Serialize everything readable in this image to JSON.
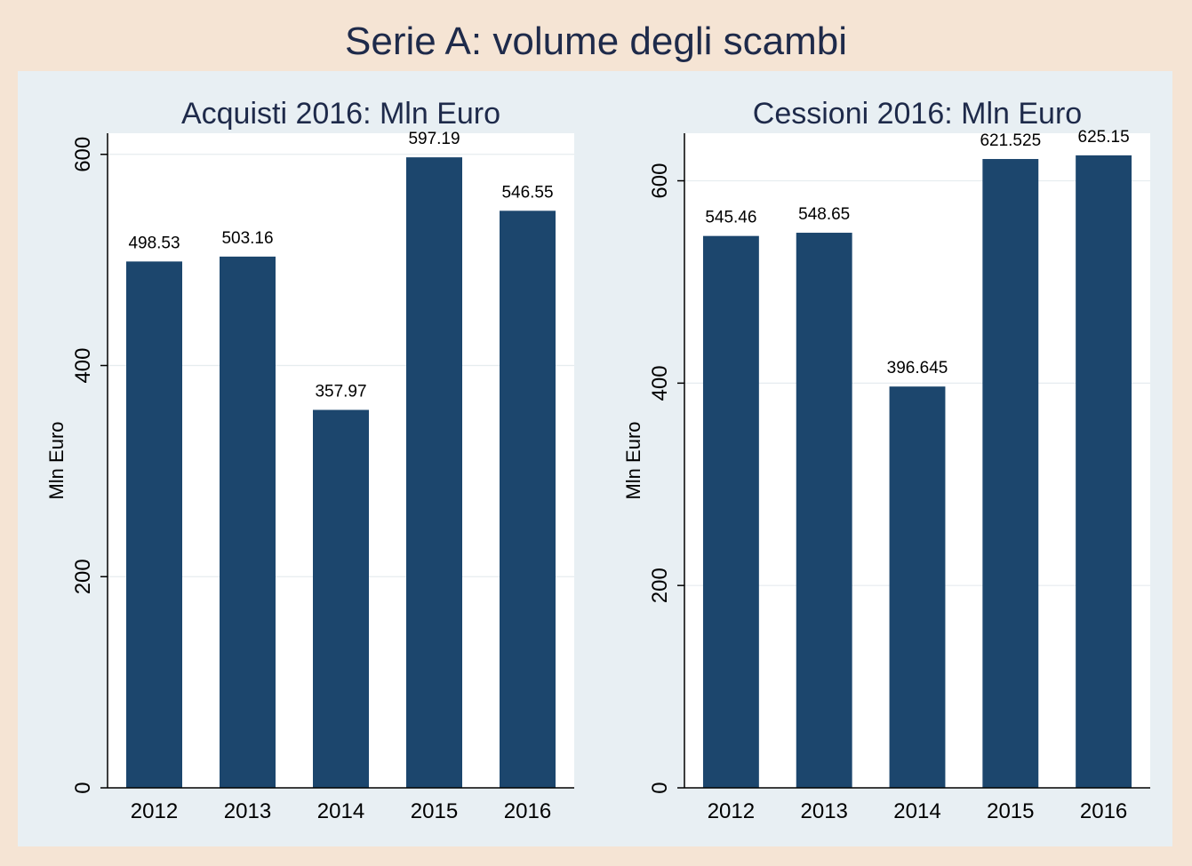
{
  "title": "Serie A: volume degli scambi",
  "colors": {
    "page_background": "#f5e4d4",
    "plot_region_background": "#e8eff3",
    "plot_area_background": "#ffffff",
    "bar": "#1c466d",
    "title": "#1e2a4a"
  },
  "chart_data": [
    {
      "type": "bar",
      "title": "Acquisti 2016: Mln Euro",
      "xlabel": "",
      "ylabel": "Mln Euro",
      "categories": [
        "2012",
        "2013",
        "2014",
        "2015",
        "2016"
      ],
      "values": [
        498.53,
        503.16,
        357.97,
        597.19,
        546.55
      ],
      "value_labels": [
        "498.53",
        "503.16",
        "357.97",
        "597.19",
        "546.55"
      ],
      "yticks": [
        0,
        200,
        400,
        600
      ],
      "ylim": [
        0,
        620
      ],
      "grid": true
    },
    {
      "type": "bar",
      "title": "Cessioni 2016: Mln Euro",
      "xlabel": "",
      "ylabel": "Mln Euro",
      "categories": [
        "2012",
        "2013",
        "2014",
        "2015",
        "2016"
      ],
      "values": [
        545.46,
        548.65,
        396.645,
        621.525,
        625.15
      ],
      "value_labels": [
        "545.46",
        "548.65",
        "396.645",
        "621.525",
        "625.15"
      ],
      "yticks": [
        0,
        200,
        400,
        600
      ],
      "ylim": [
        0,
        647
      ],
      "grid": true
    }
  ]
}
